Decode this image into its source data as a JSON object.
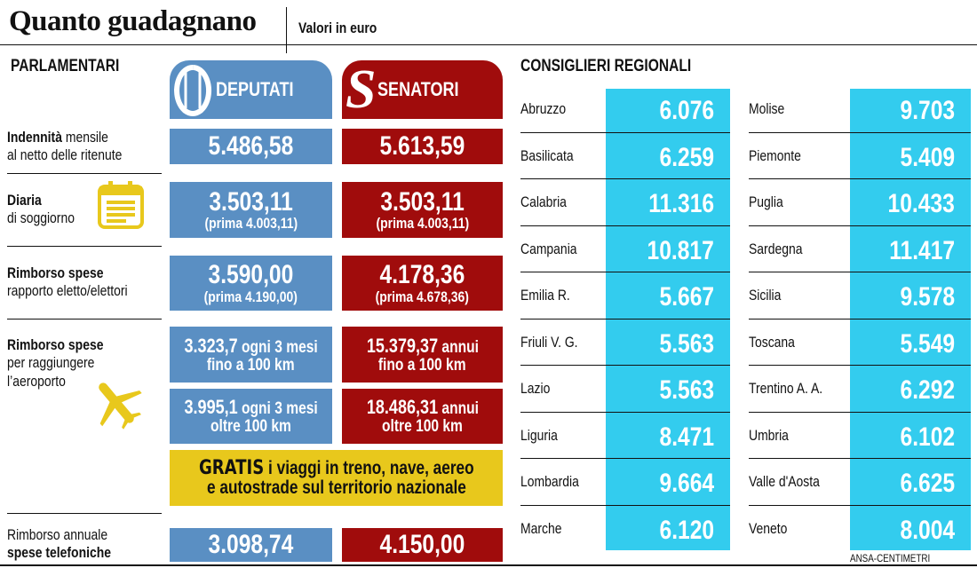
{
  "header": {
    "title": "Quanto guadagnano",
    "subtitle": "Valori in euro"
  },
  "parlamentari": {
    "section_title": "PARLAMENTARI",
    "columns": {
      "deputati": "DEPUTATI",
      "senatori": "SENATORI"
    },
    "colors": {
      "deputati": "#5a8fc3",
      "senatori": "#a00c0c",
      "highlight": "#e8c81c"
    },
    "rows": {
      "indennita": {
        "label_bold": "Indennità",
        "label_rest": " mensile",
        "label_line2": "al netto delle ritenute",
        "deputati": "5.486,58",
        "senatori": "5.613,59"
      },
      "diaria": {
        "label_bold": "Diaria",
        "label_line2": "di soggiorno",
        "deputati": "3.503,11",
        "deputati_note": "(prima 4.003,11)",
        "senatori": "3.503,11",
        "senatori_note": "(prima 4.003,11)"
      },
      "rimborso": {
        "label_bold": "Rimborso spese",
        "label_line2": "rapporto eletto/elettori",
        "deputati": "3.590,00",
        "deputati_note": "(prima 4.190,00)",
        "senatori": "4.178,36",
        "senatori_note": "(prima 4.678,36)"
      },
      "aeroporto": {
        "label_bold": "Rimborso spese",
        "label_line2": "per raggiungere",
        "label_line3": "l’aeroporto",
        "deputati_1_value": "3.323,7",
        "deputati_1_unit": " ogni 3 mesi",
        "deputati_1_note": "fino a 100 km",
        "senatori_1_value": "15.379,37",
        "senatori_1_unit": " annui",
        "senatori_1_note": "fino a 100 km",
        "deputati_2_value": "3.995,1",
        "deputati_2_unit": " ogni 3 mesi",
        "deputati_2_note": "oltre 100 km",
        "senatori_2_value": "18.486,31",
        "senatori_2_unit": " annui",
        "senatori_2_note": "oltre 100 km"
      },
      "gratis": {
        "bold": "GRATIS",
        "rest": " i viaggi in treno, nave, aereo",
        "line2": "e autostrade sul territorio nazionale"
      },
      "telefono": {
        "label_line1": "Rimborso annuale",
        "label_bold": "spese telefoniche",
        "deputati": "3.098,74",
        "senatori": "4.150,00"
      }
    },
    "icons": [
      "calendar-icon",
      "airplane-icon",
      "camera-logo",
      "senato-logo"
    ]
  },
  "consiglieri": {
    "section_title": "CONSIGLIERI REGIONALI",
    "color": "#33ccee",
    "left": [
      {
        "region": "Abruzzo",
        "value": "6.076"
      },
      {
        "region": "Basilicata",
        "value": "6.259"
      },
      {
        "region": "Calabria",
        "value": "11.316"
      },
      {
        "region": "Campania",
        "value": "10.817"
      },
      {
        "region": "Emilia R.",
        "value": "5.667"
      },
      {
        "region": "Friuli V. G.",
        "value": "5.563"
      },
      {
        "region": "Lazio",
        "value": "5.563"
      },
      {
        "region": "Liguria",
        "value": "8.471"
      },
      {
        "region": "Lombardia",
        "value": "9.664"
      },
      {
        "region": "Marche",
        "value": "6.120"
      }
    ],
    "right": [
      {
        "region": "Molise",
        "value": "9.703"
      },
      {
        "region": "Piemonte",
        "value": "5.409"
      },
      {
        "region": "Puglia",
        "value": "10.433"
      },
      {
        "region": "Sardegna",
        "value": "11.417"
      },
      {
        "region": "Sicilia",
        "value": "9.578"
      },
      {
        "region": "Toscana",
        "value": "5.549"
      },
      {
        "region": "Trentino A. A.",
        "value": "6.292"
      },
      {
        "region": "Umbria",
        "value": "6.102"
      },
      {
        "region": "Valle d'Aosta",
        "value": "6.625"
      },
      {
        "region": "Veneto",
        "value": "8.004"
      }
    ]
  },
  "credit": "ANSA-CENTIMETRI"
}
